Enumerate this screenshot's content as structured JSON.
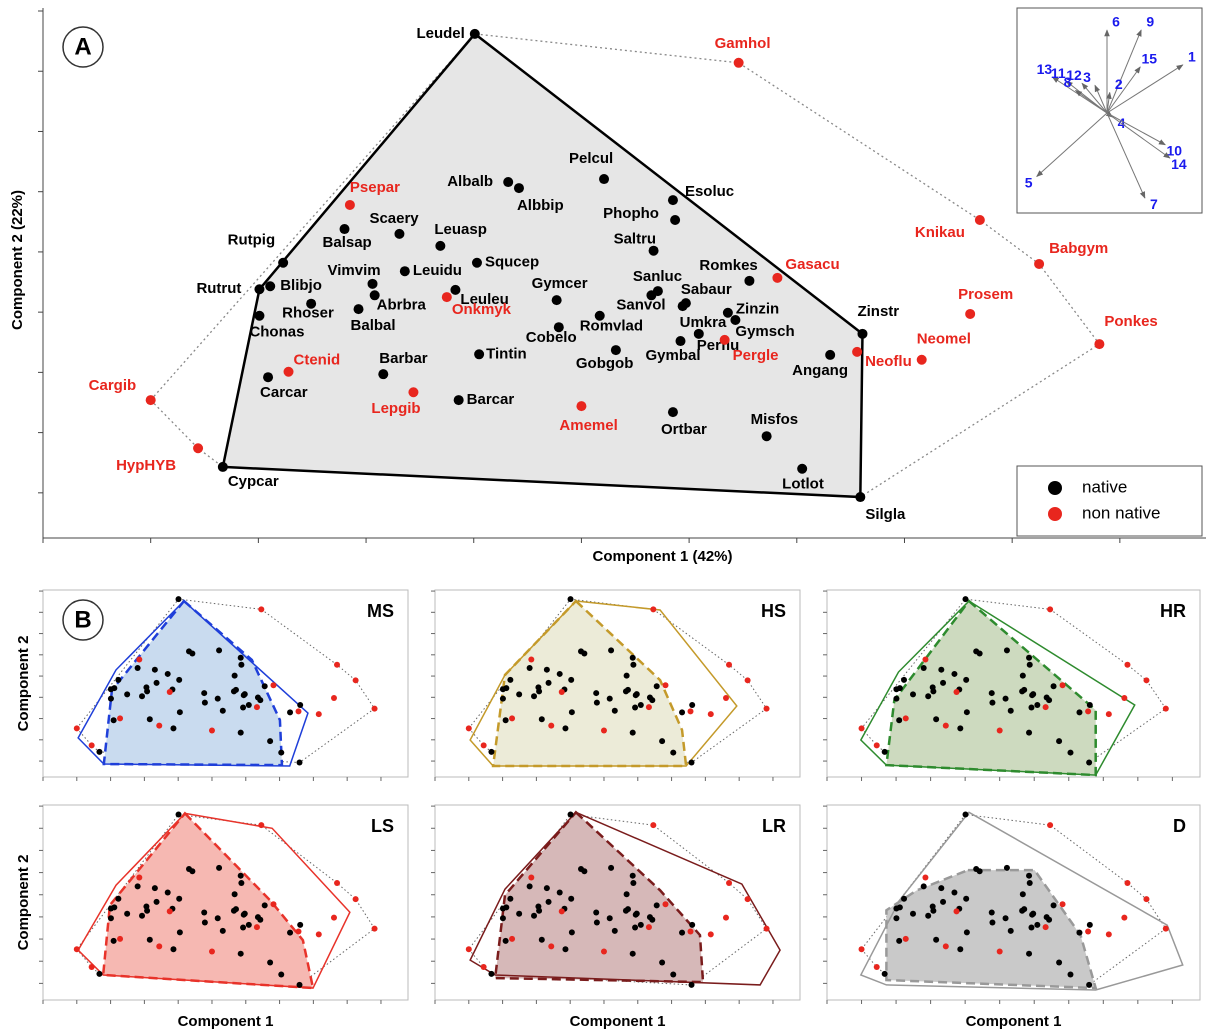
{
  "chart_data": [
    {
      "type": "scatter",
      "panel": "A",
      "x_label": "Component 1 (42%)",
      "y_label": "Component 2 (22%)",
      "xlim": [
        0,
        10.8
      ],
      "ylim": [
        0,
        8.8
      ],
      "xticks": [
        0,
        1,
        2,
        3,
        4,
        5,
        6,
        7,
        8,
        9,
        10
      ],
      "yticks": [
        0.75,
        1.75,
        2.75,
        3.75,
        4.75,
        5.75,
        6.75,
        7.75,
        8.75
      ],
      "legend": "lower right",
      "series": [
        {
          "name": "native",
          "color": "#000000",
          "labels": [
            "Leudel",
            "Rutpig",
            "Rutrut",
            "Blibjo",
            "Chonas",
            "Rhoser",
            "Carcar",
            "Cypcar",
            "Balsap",
            "Scaery",
            "Vimvim",
            "Abrbra",
            "Balbal",
            "Leuidu",
            "Leuasp",
            "Albalb",
            "Albbip",
            "Squcep",
            "Leuleu",
            "Barbar",
            "Tintin",
            "Barcar",
            "Pelcul",
            "Esoluc",
            "Phopho",
            "Saltru",
            "Gymcer",
            "Cobelo",
            "Romvlad",
            "Gobgob",
            "Sanluc",
            "Sanvol",
            "Sabaur",
            "Umkra",
            "Zinzin",
            "Gymsch",
            "Perflu",
            "Gymbal",
            "Romkes",
            "Angang",
            "Zinstr",
            "Misfos",
            "Ortbar",
            "Lotlot",
            "Silgla"
          ],
          "x": [
            4.01,
            2.23,
            2.01,
            2.11,
            2.01,
            2.49,
            2.09,
            1.67,
            2.8,
            3.31,
            3.06,
            3.08,
            2.93,
            3.36,
            3.69,
            4.32,
            4.42,
            4.03,
            3.83,
            3.16,
            4.05,
            3.86,
            5.21,
            5.85,
            5.87,
            5.67,
            4.77,
            4.79,
            5.17,
            5.32,
            5.71,
            5.65,
            5.97,
            5.94,
            6.36,
            6.43,
            6.09,
            5.92,
            6.56,
            7.31,
            7.61,
            6.72,
            5.85,
            7.05,
            7.59
          ],
          "y": [
            8.37,
            4.57,
            4.13,
            4.18,
            3.69,
            3.89,
            2.67,
            1.18,
            5.13,
            5.05,
            4.22,
            4.03,
            3.8,
            4.43,
            4.85,
            5.91,
            5.81,
            4.57,
            4.12,
            2.72,
            3.05,
            2.29,
            5.96,
            5.61,
            5.28,
            4.77,
            3.95,
            3.5,
            3.69,
            3.12,
            4.1,
            4.03,
            3.9,
            3.85,
            3.74,
            3.62,
            3.39,
            3.27,
            4.27,
            3.04,
            3.39,
            1.69,
            2.09,
            1.15,
            0.68
          ]
        },
        {
          "name": "non native",
          "color": "#e8261e",
          "labels": [
            "Gamhol",
            "Psepar",
            "Onkmyk",
            "Ctenid",
            "Lepgib",
            "Amemel",
            "Gasacu",
            "Pergle",
            "Neoflu",
            "Neomel",
            "Prosem",
            "Knikau",
            "Babgym",
            "Ponkes",
            "Cargib",
            "HypHYB"
          ],
          "x": [
            6.46,
            2.85,
            3.75,
            2.28,
            3.44,
            5.0,
            6.82,
            6.33,
            7.56,
            8.16,
            8.61,
            8.7,
            9.25,
            9.81,
            1.0,
            1.44
          ],
          "y": [
            7.89,
            5.53,
            4.0,
            2.76,
            2.42,
            2.19,
            4.32,
            3.29,
            3.09,
            2.96,
            3.72,
            5.28,
            4.55,
            3.22,
            2.29,
            1.49
          ]
        }
      ],
      "inset": {
        "type": "biplot",
        "color": "#1a1aee",
        "xlim": [
          -1,
          1
        ],
        "ylim": [
          -1,
          1
        ],
        "labels": [
          "6",
          "9",
          "15",
          "1",
          "13",
          "11",
          "12",
          "3",
          "8",
          "2",
          "4",
          "10",
          "14",
          "5",
          "7"
        ],
        "x": [
          0,
          0.37,
          0.36,
          0.82,
          -0.59,
          -0.44,
          -0.27,
          -0.13,
          -0.34,
          0.03,
          0.06,
          0.63,
          0.68,
          -0.76,
          0.41
        ],
        "y": [
          0.81,
          0.81,
          0.45,
          0.47,
          0.35,
          0.31,
          0.29,
          0.27,
          0.22,
          0.2,
          -0.04,
          -0.31,
          -0.44,
          -0.62,
          -0.83
        ]
      }
    },
    {
      "type": "hull",
      "panel": "B",
      "name": "MS",
      "color": "#1f3fd9",
      "fill": "#c9dbef",
      "y_label": "Component 2",
      "solid_hull": {
        "x": [
          4.17,
          7.84,
          7.3,
          1.8,
          1.04,
          2.16
        ],
        "y": [
          8.28,
          3.01,
          0.52,
          0.61,
          1.84,
          5.04
        ]
      },
      "dashed_hull": {
        "x": [
          4.17,
          6.18,
          7.01,
          7.07,
          1.8,
          2.04
        ],
        "y": [
          8.28,
          5.51,
          2.68,
          0.56,
          0.61,
          4.09
        ]
      }
    },
    {
      "type": "hull",
      "name": "HS",
      "color": "#c49a2a",
      "fill": "#ecebd8",
      "solid_hull": {
        "x": [
          4.17,
          6.66,
          8.93,
          7.43,
          1.72,
          1.04,
          2.07
        ],
        "y": [
          8.28,
          7.86,
          3.34,
          0.52,
          0.52,
          1.74,
          4.8
        ]
      },
      "dashed_hull": {
        "x": [
          4.17,
          6.66,
          7.31,
          7.43,
          1.72,
          2.07
        ],
        "y": [
          8.28,
          4.56,
          2.21,
          0.52,
          0.52,
          4.8
        ]
      }
    },
    {
      "type": "hull",
      "name": "HR",
      "color": "#2e8b2e",
      "fill": "#cddabf",
      "solid_hull": {
        "x": [
          4.11,
          8.91,
          7.78,
          1.72,
          0.98,
          2.07
        ],
        "y": [
          8.28,
          3.39,
          0.09,
          0.56,
          1.74,
          4.94
        ]
      },
      "dashed_hull": {
        "x": [
          4.11,
          7.78,
          7.78,
          1.72,
          1.95
        ],
        "y": [
          8.28,
          3.15,
          0.09,
          0.56,
          3.62
        ]
      }
    },
    {
      "type": "hull",
      "name": "LS",
      "color": "#e8332a",
      "fill": "#f6b8b2",
      "x_label": "Component 1",
      "y_label": "Component 2",
      "solid_hull": {
        "x": [
          4.2,
          6.78,
          9.08,
          7.99,
          1.78,
          1.04,
          2.16
        ],
        "y": [
          8.42,
          7.75,
          3.96,
          0.54,
          1.13,
          2.25,
          5.18
        ]
      },
      "dashed_hull": {
        "x": [
          4.2,
          6.72,
          7.69,
          7.99,
          1.78,
          1.98
        ],
        "y": [
          8.42,
          4.5,
          2.7,
          0.54,
          1.13,
          4.28
        ]
      }
    },
    {
      "type": "hull",
      "name": "LR",
      "color": "#7a1c1c",
      "fill": "#d6b8b8",
      "x_label": "Component 1",
      "solid_hull": {
        "x": [
          4.17,
          9.08,
          10.21,
          9.62,
          1.78,
          1.04,
          2.07
        ],
        "y": [
          8.47,
          5.23,
          2.25,
          0.68,
          1.13,
          1.8,
          5.0
        ]
      },
      "dashed_hull": {
        "x": [
          4.17,
          6.66,
          7.84,
          7.93,
          1.78,
          2.07
        ],
        "y": [
          8.47,
          4.95,
          2.93,
          0.81,
          0.99,
          4.73
        ]
      }
    },
    {
      "type": "hull",
      "name": "D",
      "color": "#999999",
      "fill": "#c9c9c9",
      "x_label": "Component 1",
      "solid_hull": {
        "x": [
          4.11,
          9.85,
          10.3,
          7.78,
          1.72,
          0.98,
          2.1
        ],
        "y": [
          8.47,
          3.38,
          1.58,
          0.45,
          0.68,
          1.13,
          4.5
        ]
      },
      "dashed_hull": {
        "x": [
          4.08,
          6.01,
          7.34,
          7.78,
          1.72,
          1.72,
          2.6
        ],
        "y": [
          5.86,
          5.86,
          2.93,
          0.54,
          0.9,
          4.05,
          4.95
        ]
      }
    }
  ]
}
